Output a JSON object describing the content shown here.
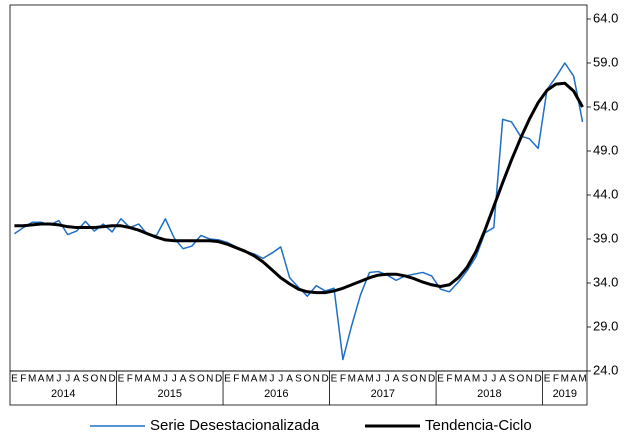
{
  "chart_data": {
    "type": "line",
    "categories": [
      "E",
      "F",
      "M",
      "A",
      "M",
      "J",
      "J",
      "A",
      "S",
      "O",
      "N",
      "D",
      "E",
      "F",
      "M",
      "A",
      "M",
      "J",
      "J",
      "A",
      "S",
      "O",
      "N",
      "D",
      "E",
      "F",
      "M",
      "A",
      "M",
      "J",
      "J",
      "A",
      "S",
      "O",
      "N",
      "D",
      "E",
      "F",
      "M",
      "A",
      "M",
      "J",
      "J",
      "A",
      "S",
      "O",
      "N",
      "D",
      "E",
      "F",
      "M",
      "A",
      "M",
      "J",
      "J",
      "A",
      "S",
      "O",
      "N",
      "D",
      "E",
      "F",
      "M",
      "A",
      "M"
    ],
    "years": [
      "2014",
      "2015",
      "2016",
      "2017",
      "2018",
      "2019"
    ],
    "series": [
      {
        "name": "Serie Desestacionalizada",
        "color": "#1f6fc5",
        "width": 1.5,
        "values": [
          39.6,
          40.3,
          40.9,
          40.9,
          40.6,
          41.1,
          39.5,
          39.9,
          41.0,
          39.9,
          40.7,
          39.8,
          41.3,
          40.3,
          40.7,
          39.5,
          39.4,
          41.3,
          39.1,
          37.9,
          38.2,
          39.4,
          39.0,
          38.9,
          38.6,
          38.1,
          37.6,
          37.3,
          36.8,
          37.4,
          38.1,
          34.6,
          33.5,
          32.5,
          33.7,
          33.1,
          33.4,
          25.3,
          29.2,
          32.7,
          35.2,
          35.3,
          34.9,
          34.3,
          34.8,
          35.0,
          35.2,
          34.8,
          33.3,
          33.0,
          34.1,
          35.4,
          37.0,
          39.7,
          40.3,
          52.6,
          52.3,
          50.7,
          50.4,
          49.3,
          56.0,
          57.4,
          59.0,
          57.5,
          52.3
        ]
      },
      {
        "name": "Tendencia-Ciclo",
        "color": "#000000",
        "width": 3,
        "values": [
          40.5,
          40.5,
          40.6,
          40.7,
          40.7,
          40.6,
          40.4,
          40.3,
          40.3,
          40.3,
          40.4,
          40.5,
          40.5,
          40.3,
          40.0,
          39.6,
          39.2,
          38.9,
          38.8,
          38.8,
          38.8,
          38.8,
          38.8,
          38.7,
          38.4,
          38.0,
          37.6,
          37.1,
          36.4,
          35.5,
          34.6,
          33.9,
          33.3,
          33.0,
          32.9,
          32.9,
          33.1,
          33.4,
          33.8,
          34.2,
          34.6,
          34.9,
          35.0,
          35.0,
          34.8,
          34.5,
          34.1,
          33.8,
          33.6,
          33.8,
          34.6,
          35.8,
          37.6,
          40.0,
          42.7,
          45.4,
          48.0,
          50.4,
          52.6,
          54.5,
          55.9,
          56.6,
          56.7,
          55.8,
          54.0
        ]
      }
    ],
    "ylim": [
      24,
      64
    ],
    "yticks": [
      {
        "value": 24,
        "label": "24.0"
      },
      {
        "value": 29,
        "label": "29.0"
      },
      {
        "value": 34,
        "label": "34.0"
      },
      {
        "value": 39,
        "label": "39.0"
      },
      {
        "value": 44,
        "label": "44.0"
      },
      {
        "value": 49,
        "label": "49.0"
      },
      {
        "value": 54,
        "label": "54.0"
      },
      {
        "value": 59,
        "label": "59.0"
      },
      {
        "value": 64,
        "label": "64.0"
      }
    ],
    "y_axis_side": "right",
    "legend": "bottom"
  }
}
